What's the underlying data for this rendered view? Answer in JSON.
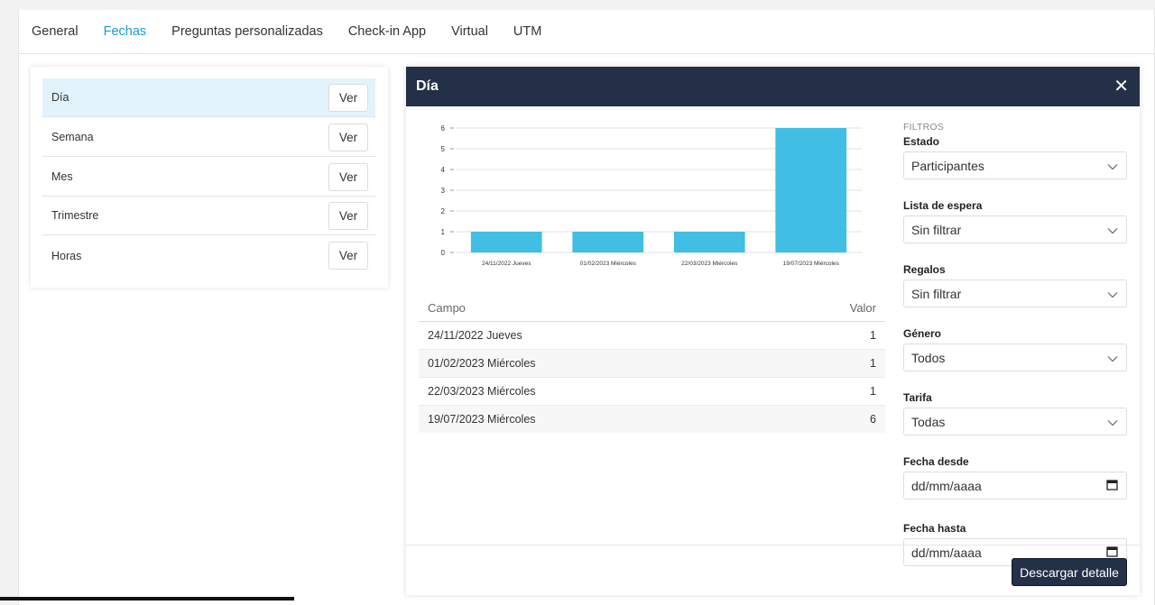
{
  "tabs": [
    {
      "label": "General",
      "active": false
    },
    {
      "label": "Fechas",
      "active": true
    },
    {
      "label": "Preguntas personalizadas",
      "active": false
    },
    {
      "label": "Check-in App",
      "active": false
    },
    {
      "label": "Virtual",
      "active": false
    },
    {
      "label": "UTM",
      "active": false
    }
  ],
  "periods": [
    {
      "label": "Día",
      "button": "Ver",
      "selected": true
    },
    {
      "label": "Semana",
      "button": "Ver",
      "selected": false
    },
    {
      "label": "Mes",
      "button": "Ver",
      "selected": false
    },
    {
      "label": "Trimestre",
      "button": "Ver",
      "selected": false
    },
    {
      "label": "Horas",
      "button": "Ver",
      "selected": false
    }
  ],
  "modal": {
    "title": "Día",
    "close_icon": "close-icon",
    "download_label": "Descargar detalle"
  },
  "chart_data": {
    "type": "bar",
    "categories": [
      "24/11/2022 Jueves",
      "01/02/2023 Miércoles",
      "22/03/2023 Miércoles",
      "19/07/2023 Miércoles"
    ],
    "values": [
      1,
      1,
      1,
      6
    ],
    "ylim": [
      0,
      6
    ],
    "yticks": [
      0,
      1,
      2,
      3,
      4,
      5,
      6
    ],
    "grid": true,
    "bar_color": "#41bee3"
  },
  "table": {
    "headers": {
      "field": "Campo",
      "value": "Valor"
    },
    "rows": [
      {
        "field": "24/11/2022 Jueves",
        "value": "1"
      },
      {
        "field": "01/02/2023 Miércoles",
        "value": "1"
      },
      {
        "field": "22/03/2023 Miércoles",
        "value": "1"
      },
      {
        "field": "19/07/2023 Miércoles",
        "value": "6"
      }
    ]
  },
  "filters": {
    "heading": "FILTROS",
    "estado": {
      "label": "Estado",
      "value": "Participantes"
    },
    "lista_espera": {
      "label": "Lista de espera",
      "value": "Sin filtrar"
    },
    "regalos": {
      "label": "Regalos",
      "value": "Sin filtrar"
    },
    "genero": {
      "label": "Género",
      "value": "Todos"
    },
    "tarifa": {
      "label": "Tarifa",
      "value": "Todas"
    },
    "fecha_desde": {
      "label": "Fecha desde",
      "placeholder": "dd/mm/aaaa"
    },
    "fecha_hasta": {
      "label": "Fecha hasta",
      "placeholder": "dd/mm/aaaa"
    }
  },
  "colors": {
    "accent": "#1a9bd7",
    "header_bg": "#233047",
    "bar": "#41bee3",
    "selected_row": "#e3f3fb"
  }
}
